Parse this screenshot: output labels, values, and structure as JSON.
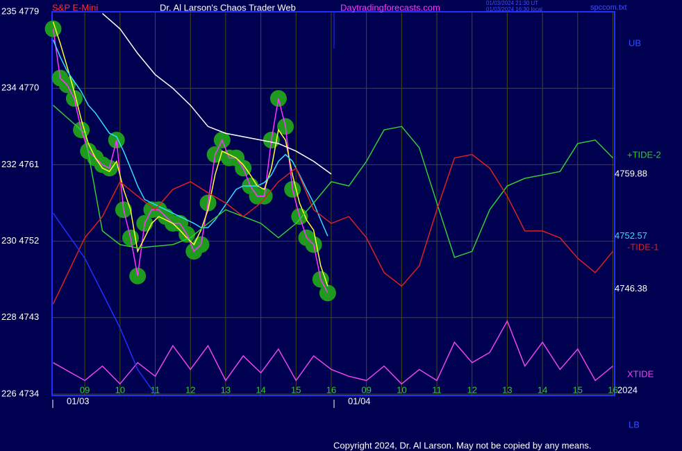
{
  "chart_data": {
    "type": "line",
    "title": "Dr. Al Larson's Chaos Trader Web",
    "symbol": "S&P E-Mini",
    "website": "Daytradingforecasts.com",
    "timestamps": [
      "01/03/2024 21:30 UT",
      "01/03/2024 16:30 local"
    ],
    "filename": "spccom.txt",
    "copyright": "Copyright 2024, Dr. Al Larson. May not be copied by any means.",
    "date_labels": [
      "01/03",
      "01/04"
    ],
    "year": "2024",
    "annotations": [
      "UB",
      "LB"
    ],
    "xlim": [
      -0.93,
      15.05
    ],
    "xticks": [
      {
        "value": 0,
        "label": "09"
      },
      {
        "value": 1,
        "label": "10"
      },
      {
        "value": 2,
        "label": "11"
      },
      {
        "value": 3,
        "label": "12"
      },
      {
        "value": 4,
        "label": "13"
      },
      {
        "value": 5,
        "label": "14"
      },
      {
        "value": 6,
        "label": "15"
      },
      {
        "value": 7,
        "label": "16"
      },
      {
        "value": 8,
        "label": "09"
      },
      {
        "value": 9,
        "label": "10"
      },
      {
        "value": 10,
        "label": "11"
      },
      {
        "value": 11,
        "label": "12"
      },
      {
        "value": 12,
        "label": "13"
      },
      {
        "value": 13,
        "label": "14"
      },
      {
        "value": 14,
        "label": "15"
      },
      {
        "value": 15,
        "label": "16"
      }
    ],
    "ylim": [
      4734,
      4779
    ],
    "yticks": [
      {
        "value": 4779,
        "label": "235 4779"
      },
      {
        "value": 4770,
        "label": "234 4770"
      },
      {
        "value": 4761,
        "label": "232 4761"
      },
      {
        "value": 4752,
        "label": "230 4752"
      },
      {
        "value": 4743,
        "label": "228 4743"
      },
      {
        "value": 4734,
        "label": "226 4734"
      }
    ],
    "grid": true,
    "grid_color": "#4a4a10",
    "price_labels": [
      4759.88,
      4752.57,
      4746.38
    ],
    "price_label_colors": [
      "#ffffff",
      "#33ddff",
      "#ffffff"
    ],
    "series": [
      {
        "color": "#ff33ff",
        "marker_color": "#1f9a1f",
        "x": [
          -0.9,
          -0.7,
          -0.5,
          -0.3,
          -0.1,
          0.1,
          0.3,
          0.5,
          0.7,
          0.9,
          1.1,
          1.3,
          1.5,
          1.7,
          1.9,
          2.1,
          2.3,
          2.5,
          2.7,
          2.9,
          3.1,
          3.3,
          3.5,
          3.7,
          3.9,
          4.1,
          4.3,
          4.5,
          4.7,
          4.9,
          5.1,
          5.3,
          5.5,
          5.7,
          5.9,
          6.1,
          6.3,
          6.5,
          6.7,
          6.9
        ],
        "values": [
          4777.0,
          4771.2,
          4770.4,
          4768.8,
          4765.1,
          4762.6,
          4761.8,
          4761.0,
          4760.6,
          4763.9,
          4755.7,
          4752.4,
          4747.9,
          4754.1,
          4755.7,
          4755.7,
          4754.9,
          4754.1,
          4754.1,
          4752.8,
          4750.8,
          4751.6,
          4756.5,
          4762.2,
          4763.9,
          4761.8,
          4761.8,
          4760.6,
          4758.5,
          4757.3,
          4757.3,
          4763.9,
          4768.8,
          4765.5,
          4758.1,
          4754.9,
          4752.4,
          4751.6,
          4747.5,
          4745.9
        ]
      },
      {
        "color": "#ffff33",
        "x": [
          -0.9,
          -0.7,
          -0.5,
          -0.3,
          -0.1,
          0.1,
          0.3,
          0.5,
          0.7,
          0.9,
          1.1,
          1.3,
          1.5,
          1.7,
          1.9,
          2.1,
          2.3,
          2.5,
          2.7,
          2.9,
          3.1,
          3.3,
          3.5,
          3.7,
          3.9,
          4.1,
          4.3,
          4.5,
          4.7,
          4.9,
          5.1,
          5.3,
          5.5,
          5.7,
          5.9,
          6.1,
          6.3,
          6.5,
          6.7,
          6.9
        ],
        "values": [
          4777.8,
          4775.3,
          4772.5,
          4769.6,
          4766.3,
          4763.5,
          4761.8,
          4760.6,
          4760.2,
          4761.4,
          4758.1,
          4755.7,
          4750.8,
          4752.4,
          4754.1,
          4754.9,
          4754.5,
          4754.1,
          4753.3,
          4752.4,
          4751.6,
          4753.3,
          4755.7,
          4759.8,
          4762.6,
          4762.2,
          4761.8,
          4761.0,
          4759.8,
          4758.5,
          4758.1,
          4760.6,
          4765.1,
          4763.9,
          4759.8,
          4756.5,
          4754.5,
          4753.3,
          4749.1,
          4746.7
        ]
      },
      {
        "color": "#33ddff",
        "x": [
          -0.9,
          -0.7,
          -0.5,
          -0.3,
          -0.1,
          0.1,
          0.3,
          0.5,
          0.7,
          0.9,
          1.1,
          1.3,
          1.5,
          1.7,
          1.9,
          2.1,
          2.3,
          2.5,
          2.7,
          2.9,
          3.1,
          3.3,
          3.5,
          3.7,
          3.9,
          4.1,
          4.3,
          4.5,
          4.7,
          4.9,
          5.1,
          5.3,
          5.5,
          5.7,
          5.9,
          6.1,
          6.3,
          6.5,
          6.7,
          6.9
        ],
        "values": [
          4775.7,
          4773.7,
          4772.0,
          4770.8,
          4769.6,
          4768.0,
          4767.1,
          4765.9,
          4764.7,
          4764.3,
          4762.6,
          4760.6,
          4758.5,
          4756.9,
          4756.5,
          4756.1,
          4755.7,
          4755.3,
          4754.9,
          4754.5,
          4754.1,
          4753.6,
          4753.6,
          4754.5,
          4755.7,
          4756.9,
          4758.1,
          4758.5,
          4758.5,
          4758.5,
          4758.9,
          4759.8,
          4761.4,
          4762.2,
          4761.4,
          4759.8,
          4758.1,
          4756.5,
          4754.5,
          4752.6
        ]
      },
      {
        "color": "#ffffff",
        "x": [
          0.5,
          1,
          1.5,
          2,
          2.5,
          3,
          3.5,
          4,
          4.5,
          5,
          5.5,
          6,
          6.5,
          7
        ],
        "values": [
          4778.8,
          4777.0,
          4774.1,
          4771.6,
          4770.0,
          4768.0,
          4765.5,
          4764.7,
          4764.3,
          4763.9,
          4763.5,
          4762.6,
          4761.4,
          4759.9
        ]
      },
      {
        "name": "+TIDE-2",
        "color": "#33cc33",
        "x": [
          -0.9,
          0,
          0.5,
          1,
          1.5,
          2,
          2.5,
          3,
          3.5,
          4,
          4.5,
          5,
          5.5,
          6,
          6.5,
          7,
          7.5,
          8,
          8.5,
          9,
          9.5,
          10,
          10.5,
          11,
          11.5,
          12,
          12.5,
          13,
          13.5,
          14,
          14.5,
          15
        ],
        "values": [
          4768.0,
          4764.7,
          4753.2,
          4751.6,
          4751.2,
          4751.4,
          4751.6,
          4752.4,
          4754.1,
          4755.7,
          4754.9,
          4754.1,
          4752.4,
          4754.1,
          4756.5,
          4759.0,
          4758.5,
          4761.4,
          4765.1,
          4765.5,
          4763.0,
          4756.5,
          4750.1,
          4750.8,
          4755.7,
          4758.5,
          4759.4,
          4759.8,
          4760.2,
          4763.5,
          4763.9,
          4761.8
        ]
      },
      {
        "name": "-TIDE-1",
        "color": "#dd2020",
        "x": [
          -0.9,
          0,
          0.5,
          1,
          1.5,
          2,
          2.5,
          3,
          3.5,
          4,
          4.5,
          5,
          5.5,
          6,
          6.5,
          7,
          7.5,
          8,
          8.5,
          9,
          9.5,
          10,
          10.5,
          11,
          11.5,
          12,
          12.5,
          13,
          13.5,
          14,
          14.5,
          15
        ],
        "values": [
          4744.6,
          4752.4,
          4754.9,
          4759.0,
          4757.3,
          4755.7,
          4758.1,
          4759.0,
          4757.7,
          4756.5,
          4754.9,
          4756.5,
          4759.0,
          4760.6,
          4755.7,
          4754.1,
          4754.9,
          4752.4,
          4748.3,
          4746.7,
          4749.1,
          4755.7,
          4761.8,
          4762.2,
          4760.6,
          4757.3,
          4753.2,
          4753.2,
          4752.4,
          4750.0,
          4748.3,
          4750.8
        ]
      },
      {
        "name": "XTIDE",
        "color": "#ee44ee",
        "x": [
          -0.9,
          0,
          0.5,
          1,
          1.5,
          2,
          2.5,
          3,
          3.5,
          4,
          4.5,
          5,
          5.5,
          6,
          6.5,
          7,
          7.5,
          8,
          8.5,
          9,
          9.5,
          10,
          10.5,
          11,
          11.5,
          12,
          12.5,
          13,
          13.5,
          14,
          14.5,
          15
        ],
        "values": [
          4737.7,
          4735.6,
          4737.3,
          4735.2,
          4737.7,
          4736.1,
          4739.7,
          4736.9,
          4739.7,
          4735.6,
          4738.5,
          4736.5,
          4739.3,
          4735.6,
          4738.5,
          4736.9,
          4736.1,
          4735.6,
          4737.3,
          4735.2,
          4736.9,
          4735.6,
          4740.1,
          4737.7,
          4738.9,
          4742.6,
          4737.3,
          4740.1,
          4736.9,
          4739.3,
          4735.6,
          4737.3
        ]
      },
      {
        "color": "#2030ff",
        "x": [
          -0.9,
          0,
          0.5,
          1,
          1.5,
          2
        ],
        "values": [
          4755.3,
          4750.0,
          4745.9,
          4741.8,
          4736.9,
          4734.0
        ]
      }
    ]
  }
}
